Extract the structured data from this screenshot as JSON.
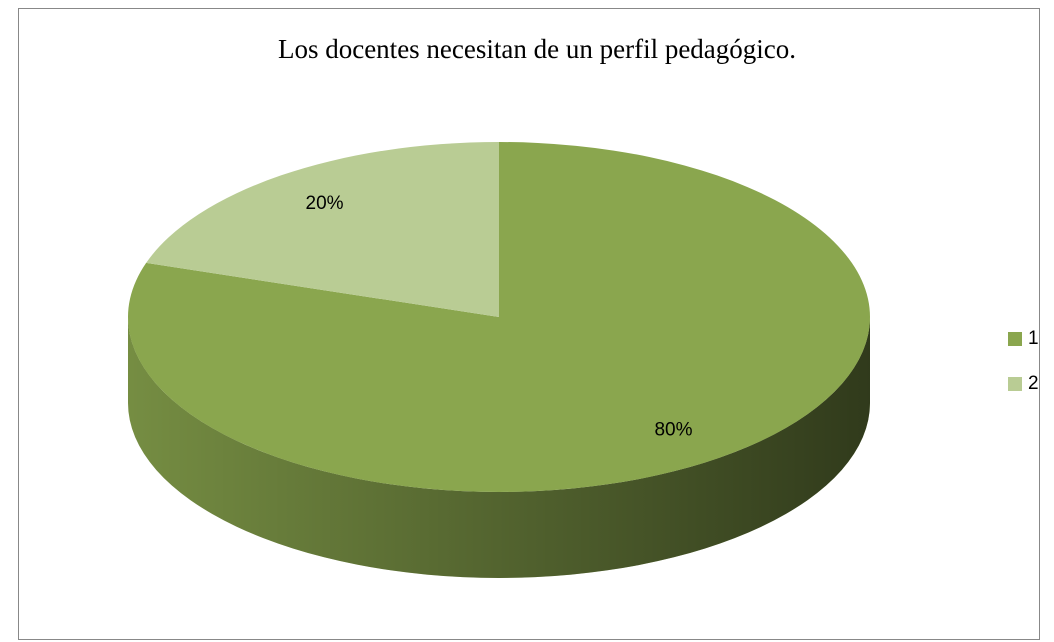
{
  "chart_data": {
    "type": "pie",
    "title": "Los docentes necesitan de un perfil pedagógico.",
    "categories": [
      "1",
      "2"
    ],
    "values": [
      80,
      20
    ],
    "value_labels": [
      "80%",
      "20%"
    ],
    "colors": [
      "#8aa64e",
      "#b9cc94"
    ],
    "legend": "right"
  }
}
